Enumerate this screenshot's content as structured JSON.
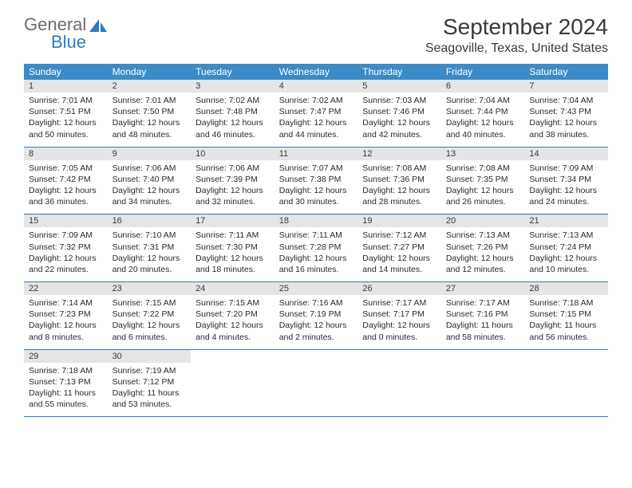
{
  "logo": {
    "general": "General",
    "blue": "Blue"
  },
  "title": "September 2024",
  "location": "Seagoville, Texas, United States",
  "weekdays": [
    "Sunday",
    "Monday",
    "Tuesday",
    "Wednesday",
    "Thursday",
    "Friday",
    "Saturday"
  ],
  "header_color": "#3b8bc6",
  "daynum_bg": "#e5e5e5",
  "rule_color": "#2d7cc0",
  "days": [
    {
      "n": 1,
      "sunrise": "7:01 AM",
      "sunset": "7:51 PM",
      "dh": 12,
      "dm": 50
    },
    {
      "n": 2,
      "sunrise": "7:01 AM",
      "sunset": "7:50 PM",
      "dh": 12,
      "dm": 48
    },
    {
      "n": 3,
      "sunrise": "7:02 AM",
      "sunset": "7:48 PM",
      "dh": 12,
      "dm": 46
    },
    {
      "n": 4,
      "sunrise": "7:02 AM",
      "sunset": "7:47 PM",
      "dh": 12,
      "dm": 44
    },
    {
      "n": 5,
      "sunrise": "7:03 AM",
      "sunset": "7:46 PM",
      "dh": 12,
      "dm": 42
    },
    {
      "n": 6,
      "sunrise": "7:04 AM",
      "sunset": "7:44 PM",
      "dh": 12,
      "dm": 40
    },
    {
      "n": 7,
      "sunrise": "7:04 AM",
      "sunset": "7:43 PM",
      "dh": 12,
      "dm": 38
    },
    {
      "n": 8,
      "sunrise": "7:05 AM",
      "sunset": "7:42 PM",
      "dh": 12,
      "dm": 36
    },
    {
      "n": 9,
      "sunrise": "7:06 AM",
      "sunset": "7:40 PM",
      "dh": 12,
      "dm": 34
    },
    {
      "n": 10,
      "sunrise": "7:06 AM",
      "sunset": "7:39 PM",
      "dh": 12,
      "dm": 32
    },
    {
      "n": 11,
      "sunrise": "7:07 AM",
      "sunset": "7:38 PM",
      "dh": 12,
      "dm": 30
    },
    {
      "n": 12,
      "sunrise": "7:08 AM",
      "sunset": "7:36 PM",
      "dh": 12,
      "dm": 28
    },
    {
      "n": 13,
      "sunrise": "7:08 AM",
      "sunset": "7:35 PM",
      "dh": 12,
      "dm": 26
    },
    {
      "n": 14,
      "sunrise": "7:09 AM",
      "sunset": "7:34 PM",
      "dh": 12,
      "dm": 24
    },
    {
      "n": 15,
      "sunrise": "7:09 AM",
      "sunset": "7:32 PM",
      "dh": 12,
      "dm": 22
    },
    {
      "n": 16,
      "sunrise": "7:10 AM",
      "sunset": "7:31 PM",
      "dh": 12,
      "dm": 20
    },
    {
      "n": 17,
      "sunrise": "7:11 AM",
      "sunset": "7:30 PM",
      "dh": 12,
      "dm": 18
    },
    {
      "n": 18,
      "sunrise": "7:11 AM",
      "sunset": "7:28 PM",
      "dh": 12,
      "dm": 16
    },
    {
      "n": 19,
      "sunrise": "7:12 AM",
      "sunset": "7:27 PM",
      "dh": 12,
      "dm": 14
    },
    {
      "n": 20,
      "sunrise": "7:13 AM",
      "sunset": "7:26 PM",
      "dh": 12,
      "dm": 12
    },
    {
      "n": 21,
      "sunrise": "7:13 AM",
      "sunset": "7:24 PM",
      "dh": 12,
      "dm": 10
    },
    {
      "n": 22,
      "sunrise": "7:14 AM",
      "sunset": "7:23 PM",
      "dh": 12,
      "dm": 8
    },
    {
      "n": 23,
      "sunrise": "7:15 AM",
      "sunset": "7:22 PM",
      "dh": 12,
      "dm": 6
    },
    {
      "n": 24,
      "sunrise": "7:15 AM",
      "sunset": "7:20 PM",
      "dh": 12,
      "dm": 4
    },
    {
      "n": 25,
      "sunrise": "7:16 AM",
      "sunset": "7:19 PM",
      "dh": 12,
      "dm": 2
    },
    {
      "n": 26,
      "sunrise": "7:17 AM",
      "sunset": "7:17 PM",
      "dh": 12,
      "dm": 0
    },
    {
      "n": 27,
      "sunrise": "7:17 AM",
      "sunset": "7:16 PM",
      "dh": 11,
      "dm": 58
    },
    {
      "n": 28,
      "sunrise": "7:18 AM",
      "sunset": "7:15 PM",
      "dh": 11,
      "dm": 56
    },
    {
      "n": 29,
      "sunrise": "7:18 AM",
      "sunset": "7:13 PM",
      "dh": 11,
      "dm": 55
    },
    {
      "n": 30,
      "sunrise": "7:19 AM",
      "sunset": "7:12 PM",
      "dh": 11,
      "dm": 53
    }
  ]
}
